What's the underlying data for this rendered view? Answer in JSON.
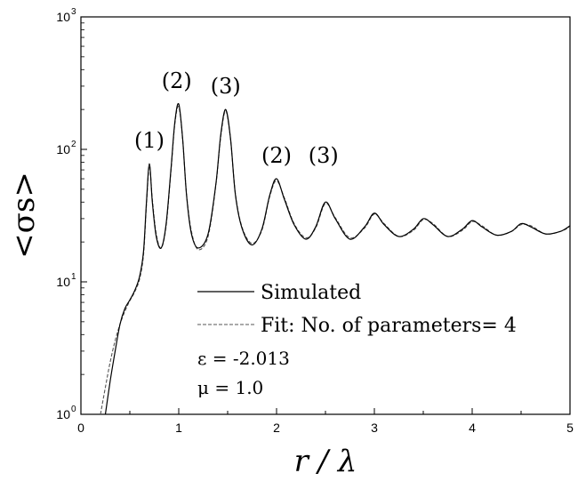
{
  "chart_data": {
    "type": "line",
    "xlabel": "r / λ",
    "ylabel": "<σs>",
    "xlim": [
      0,
      5
    ],
    "ylim": [
      1,
      1000
    ],
    "yscale": "log",
    "grid": false,
    "legend_position": "lower-right",
    "x_ticks": [
      0,
      1,
      2,
      3,
      4,
      5
    ],
    "x_tick_labels": [
      "0",
      "1",
      "2",
      "3",
      "4",
      "5"
    ],
    "y_ticks": [
      1,
      10,
      100,
      1000
    ],
    "y_tick_labels": [
      "10",
      "10",
      "10",
      "10"
    ],
    "y_tick_exponents": [
      "0",
      "1",
      "2",
      "3"
    ],
    "series": [
      {
        "name": "Simulated",
        "style": "solid",
        "color": "#000000",
        "x": [
          0.25,
          0.3,
          0.35,
          0.4,
          0.45,
          0.5,
          0.55,
          0.6,
          0.64,
          0.67,
          0.7,
          0.73,
          0.77,
          0.82,
          0.87,
          0.92,
          0.96,
          1.0,
          1.04,
          1.08,
          1.13,
          1.2,
          1.3,
          1.38,
          1.43,
          1.48,
          1.53,
          1.58,
          1.65,
          1.75,
          1.85,
          1.93,
          2.0,
          2.08,
          2.18,
          2.3,
          2.4,
          2.5,
          2.6,
          2.75,
          2.9,
          3.0,
          3.1,
          3.25,
          3.4,
          3.5,
          3.6,
          3.75,
          3.9,
          4.0,
          4.1,
          4.25,
          4.4,
          4.5,
          4.6,
          4.75,
          4.9,
          5.0
        ],
        "y": [
          1.0,
          1.8,
          3.0,
          4.8,
          6.3,
          7.3,
          8.6,
          11.0,
          17,
          40,
          78,
          40,
          22,
          18,
          27,
          70,
          160,
          220,
          120,
          45,
          23,
          18,
          23,
          55,
          130,
          200,
          120,
          45,
          25,
          19,
          25,
          45,
          60,
          42,
          27,
          21,
          26,
          40,
          30,
          21,
          26,
          33,
          27,
          22,
          25,
          30,
          27,
          22,
          25,
          29,
          26,
          22.5,
          24,
          27.5,
          26,
          23,
          24,
          26.5
        ]
      },
      {
        "name": "Fit: No. of parameters= 4",
        "style": "dashed",
        "color": "#555555",
        "x": [
          0.2,
          0.25,
          0.3,
          0.35,
          0.4,
          0.45,
          0.5,
          0.55,
          0.6,
          0.64,
          0.67,
          0.7,
          0.73,
          0.77,
          0.82,
          0.87,
          0.92,
          0.96,
          1.0,
          1.04,
          1.08,
          1.13,
          1.2,
          1.3,
          1.38,
          1.43,
          1.48,
          1.53,
          1.58,
          1.65,
          1.75,
          1.85,
          1.93,
          2.0,
          2.08,
          2.18,
          2.3,
          2.4,
          2.5,
          2.6,
          2.75,
          2.9,
          3.0,
          3.1,
          3.25,
          3.4,
          3.5,
          3.6,
          3.75,
          3.9,
          4.0,
          4.1,
          4.25,
          4.4,
          4.5,
          4.6,
          4.75,
          4.9,
          5.0
        ],
        "y": [
          1.0,
          1.6,
          2.5,
          3.6,
          4.8,
          6.0,
          7.2,
          8.4,
          10.5,
          16,
          38,
          75,
          42,
          23,
          18,
          26,
          68,
          155,
          210,
          118,
          46,
          24,
          17.5,
          22,
          54,
          125,
          195,
          118,
          46,
          25.5,
          19.5,
          24.5,
          44,
          58,
          43,
          27.5,
          21.5,
          25.5,
          39,
          30.5,
          21.5,
          25.5,
          32.5,
          27.5,
          22,
          24.5,
          29.5,
          27.5,
          22,
          24.5,
          28.5,
          26.5,
          22.5,
          24,
          27,
          26.5,
          23,
          24,
          26
        ]
      }
    ],
    "annotations": [
      {
        "text": "(1)",
        "x": 0.7,
        "y": 78
      },
      {
        "text": "(2)",
        "x": 0.98,
        "y": 220
      },
      {
        "text": "(3)",
        "x": 1.48,
        "y": 200
      },
      {
        "text": "(2)",
        "x": 2.0,
        "y": 60
      },
      {
        "text": "(3)",
        "x": 2.48,
        "y": 60
      }
    ],
    "parameters": [
      "ε = -2.013",
      "μ = 1.0"
    ]
  }
}
